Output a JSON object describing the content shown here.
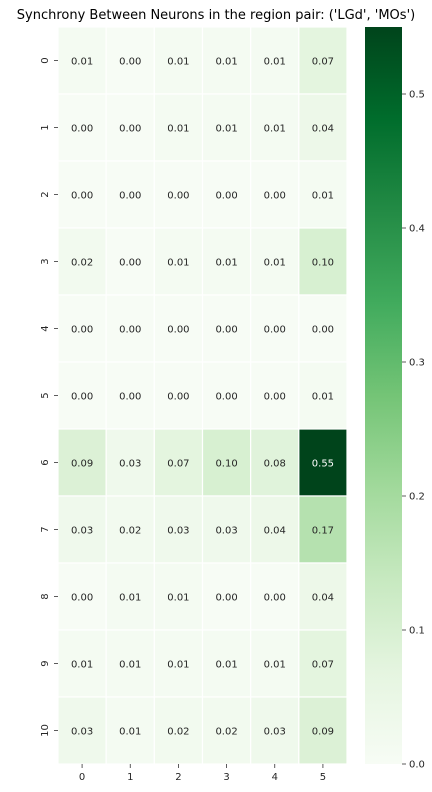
{
  "chart_data": {
    "type": "heatmap",
    "title": "Synchrony Between Neurons in the region pair: ('LGd', 'MOs')",
    "xlabel": "",
    "ylabel": "",
    "x_categories": [
      "0",
      "1",
      "2",
      "3",
      "4",
      "5"
    ],
    "y_categories": [
      "0",
      "1",
      "2",
      "3",
      "4",
      "5",
      "6",
      "7",
      "8",
      "9",
      "10"
    ],
    "values": [
      [
        0.01,
        0.0,
        0.01,
        0.01,
        0.01,
        0.07
      ],
      [
        0.0,
        0.0,
        0.01,
        0.01,
        0.01,
        0.04
      ],
      [
        0.0,
        0.0,
        0.0,
        0.0,
        0.0,
        0.01
      ],
      [
        0.02,
        0.0,
        0.01,
        0.01,
        0.01,
        0.1
      ],
      [
        0.0,
        0.0,
        0.0,
        0.0,
        0.0,
        0.0
      ],
      [
        0.0,
        0.0,
        0.0,
        0.0,
        0.0,
        0.01
      ],
      [
        0.09,
        0.03,
        0.07,
        0.1,
        0.08,
        0.55
      ],
      [
        0.03,
        0.02,
        0.03,
        0.03,
        0.04,
        0.17
      ],
      [
        0.0,
        0.01,
        0.01,
        0.0,
        0.0,
        0.04
      ],
      [
        0.01,
        0.01,
        0.01,
        0.01,
        0.01,
        0.07
      ],
      [
        0.03,
        0.01,
        0.02,
        0.02,
        0.03,
        0.09
      ]
    ],
    "vmin": 0.0,
    "vmax": 0.55,
    "colormap": "Greens",
    "colorbar_ticks": [
      "0.0",
      "0.1",
      "0.2",
      "0.3",
      "0.4",
      "0.5"
    ],
    "colorbar_tick_values": [
      0.0,
      0.1,
      0.2,
      0.3,
      0.4,
      0.5
    ],
    "annotated": true,
    "cell_gridlines": "white"
  }
}
